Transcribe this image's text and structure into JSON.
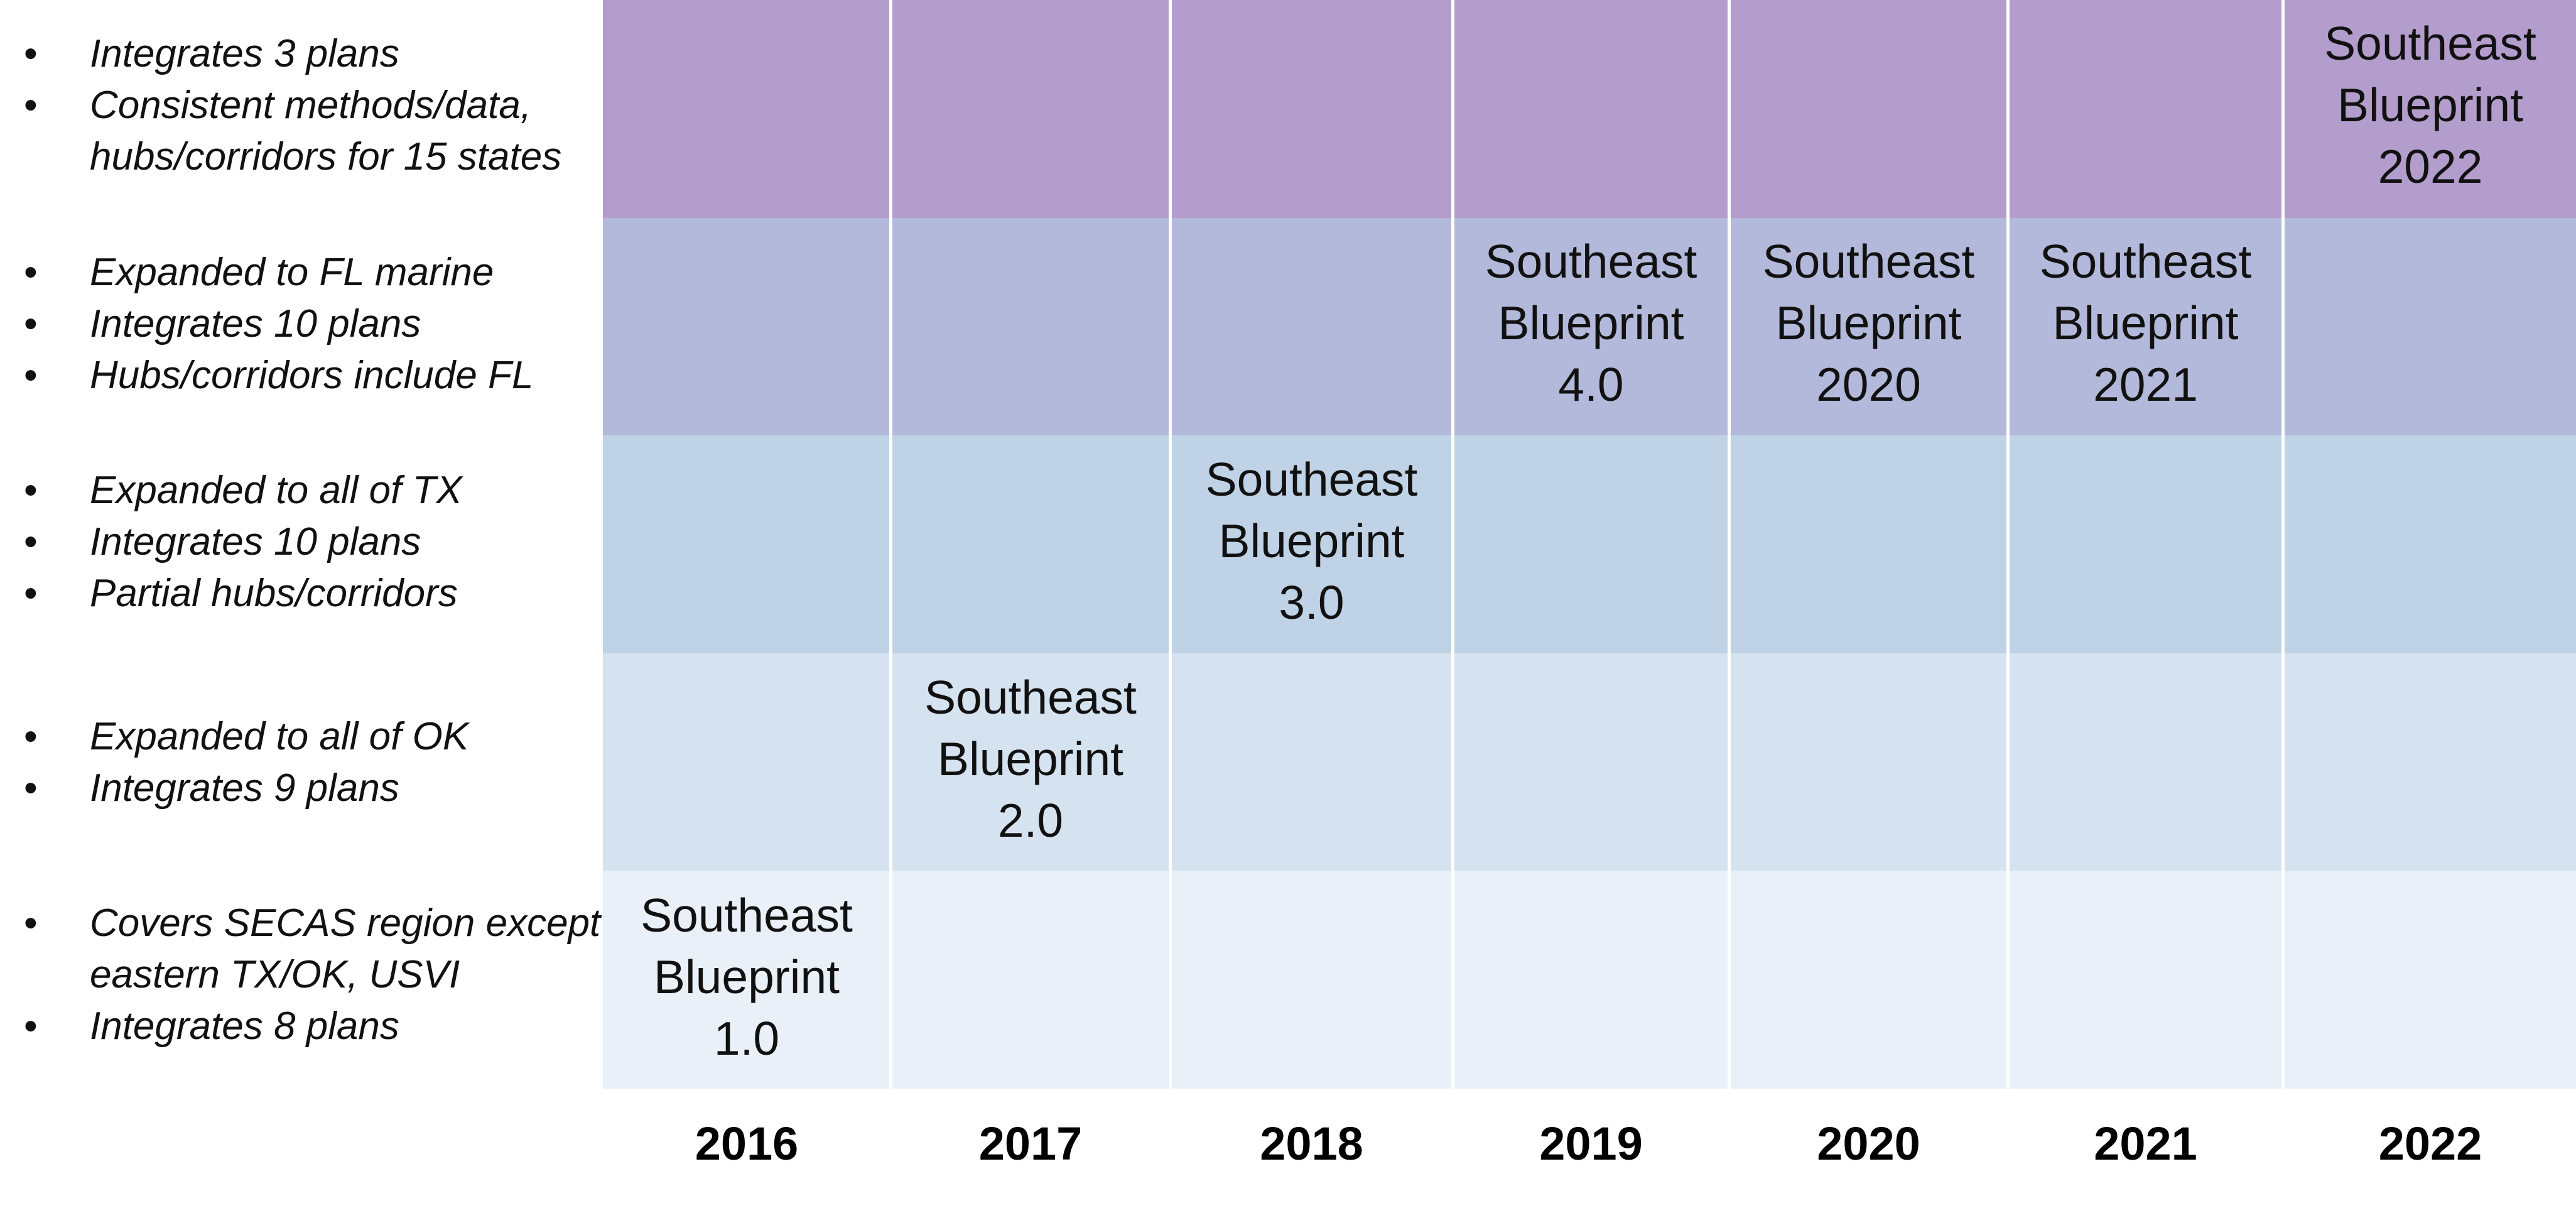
{
  "colors": {
    "band_2022": "#b39dcc",
    "band_2019_2021": "#b3b9da",
    "band_2018": "#c0d2e6",
    "band_2017": "#d5e2ef",
    "band_2016": "#eaf0f7",
    "divider": "#ffffff"
  },
  "rows": [
    {
      "notes": [
        {
          "bullet": true,
          "text": "Integrates 3 plans"
        },
        {
          "bullet": true,
          "text": "Consistent methods/data,"
        },
        {
          "bullet": false,
          "text": "hubs/corridors for 15 states"
        }
      ]
    },
    {
      "notes": [
        {
          "bullet": true,
          "text": "Expanded to FL marine"
        },
        {
          "bullet": true,
          "text": "Integrates 10 plans"
        },
        {
          "bullet": true,
          "text": "Hubs/corridors include FL"
        }
      ]
    },
    {
      "notes": [
        {
          "bullet": true,
          "text": "Expanded to all of TX"
        },
        {
          "bullet": true,
          "text": "Integrates 10 plans"
        },
        {
          "bullet": true,
          "text": "Partial hubs/corridors"
        }
      ]
    },
    {
      "notes": [
        {
          "bullet": true,
          "text": "Expanded to all of OK"
        },
        {
          "bullet": true,
          "text": "Integrates 9 plans"
        }
      ]
    },
    {
      "notes": [
        {
          "bullet": true,
          "text": "Covers SECAS region except"
        },
        {
          "bullet": false,
          "text": "eastern TX/OK, USVI"
        },
        {
          "bullet": true,
          "text": "Integrates 8 plans"
        }
      ]
    }
  ],
  "bullet_char": "•",
  "years": [
    "2016",
    "2017",
    "2018",
    "2019",
    "2020",
    "2021",
    "2022"
  ],
  "versions": [
    {
      "line1": "Southeast",
      "line2": "Blueprint",
      "line3": "1.0",
      "year": "2016"
    },
    {
      "line1": "Southeast",
      "line2": "Blueprint",
      "line3": "2.0",
      "year": "2017"
    },
    {
      "line1": "Southeast",
      "line2": "Blueprint",
      "line3": "3.0",
      "year": "2018"
    },
    {
      "line1": "Southeast",
      "line2": "Blueprint",
      "line3": "4.0",
      "year": "2019"
    },
    {
      "line1": "Southeast",
      "line2": "Blueprint",
      "line3": "2020",
      "year": "2020"
    },
    {
      "line1": "Southeast",
      "line2": "Blueprint",
      "line3": "2021",
      "year": "2021"
    },
    {
      "line1": "Southeast",
      "line2": "Blueprint",
      "line3": "2022",
      "year": "2022"
    }
  ]
}
